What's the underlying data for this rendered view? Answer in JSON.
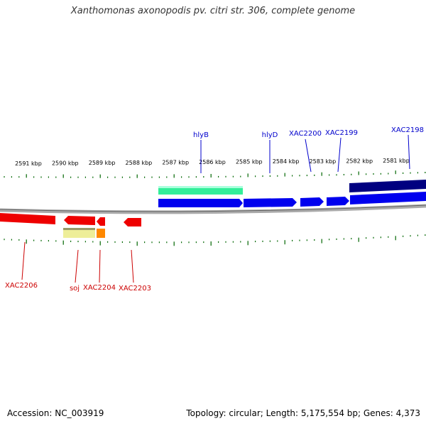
{
  "title": "Xanthomonas axonopodis pv. citri str. 306, complete genome",
  "footer": {
    "accession": "Accession: NC_003919",
    "summary": "Topology: circular; Length: 5,175,554 bp; Genes: 4,373"
  },
  "colors": {
    "forward_strand": "#0000ee",
    "forward_dark": "#000080",
    "rna_green": "#33ee99",
    "reverse_strand": "#ee0000",
    "pseudo_yellow": "#eeee99",
    "orange": "#ff8800",
    "label_forward": "#0000cc",
    "label_reverse": "#cc0000",
    "tick_green": "#006600",
    "backbone": "#888888"
  },
  "ruler": {
    "labels": [
      "2591 kbp",
      "2590 kbp",
      "2589 kbp",
      "2588 kbp",
      "2587 kbp",
      "2586 kbp",
      "2585 kbp",
      "2584 kbp",
      "2583 kbp",
      "2582 kbp",
      "2581 kbp"
    ]
  },
  "genes": {
    "forward_labels": [
      "hlyB",
      "hlyD",
      "XAC2200",
      "XAC2199",
      "XAC2198"
    ],
    "reverse_labels": [
      "XAC2206",
      "soj",
      "XAC2204",
      "XAC2203"
    ]
  }
}
